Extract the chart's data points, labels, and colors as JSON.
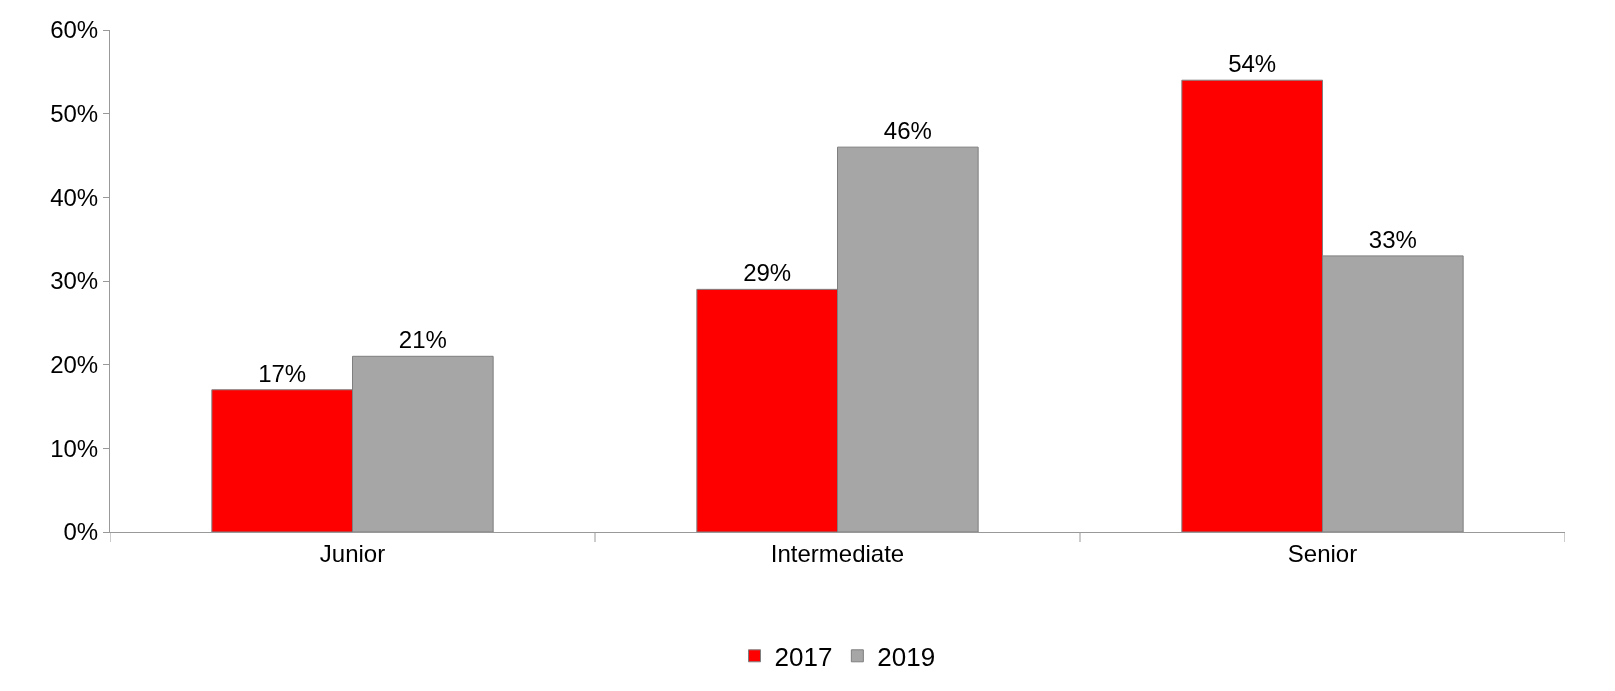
{
  "chart_data": {
    "type": "bar",
    "categories": [
      "Junior",
      "Intermediate",
      "Senior"
    ],
    "series": [
      {
        "name": "2017",
        "color": "#ff0000",
        "values": [
          17,
          29,
          54
        ],
        "value_labels": [
          "17%",
          "29%",
          "54%"
        ]
      },
      {
        "name": "2019",
        "color": "#a6a6a6",
        "values": [
          21,
          46,
          33
        ],
        "value_labels": [
          "21%",
          "46%",
          "33%"
        ]
      }
    ],
    "ylim": [
      0,
      60
    ],
    "yticks": [
      {
        "value": 0,
        "label": "0%"
      },
      {
        "value": 10,
        "label": "10%"
      },
      {
        "value": 20,
        "label": "20%"
      },
      {
        "value": 30,
        "label": "30%"
      },
      {
        "value": 40,
        "label": "40%"
      },
      {
        "value": 50,
        "label": "50%"
      },
      {
        "value": 60,
        "label": "60%"
      }
    ],
    "grid": false,
    "legend": "bottom"
  }
}
